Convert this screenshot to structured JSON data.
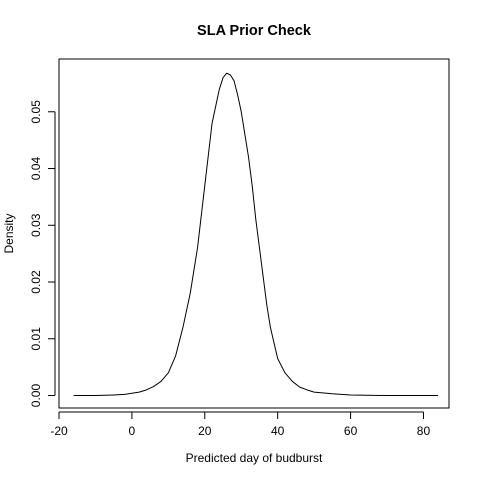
{
  "chart_data": {
    "type": "line",
    "title": "SLA Prior Check",
    "xlabel": "Predicted day of budburst",
    "ylabel": "Density",
    "xlim": [
      -20,
      87
    ],
    "ylim": [
      -0.0022,
      0.0593
    ],
    "x_ticks": [
      -20,
      0,
      20,
      40,
      60,
      80
    ],
    "y_ticks": [
      0.0,
      0.01,
      0.02,
      0.03,
      0.04,
      0.05
    ],
    "x_tick_labels": [
      "-20",
      "0",
      "20",
      "40",
      "60",
      "80"
    ],
    "y_tick_labels": [
      "0.00",
      "0.01",
      "0.02",
      "0.03",
      "0.04",
      "0.05"
    ],
    "grid": false,
    "legend": "none",
    "line_color": "#000000",
    "series": [
      {
        "x": [
          -16,
          -10,
          -5,
          -2,
          0,
          2,
          4,
          6,
          8,
          10,
          12,
          14,
          16,
          18,
          20,
          22,
          23,
          24,
          25,
          26,
          27,
          28,
          29,
          30,
          31,
          32,
          33,
          34,
          35,
          36,
          37,
          38,
          40,
          42,
          44,
          46,
          48,
          50,
          55,
          60,
          70,
          84
        ],
        "y": [
          0.0,
          0.0,
          0.0001,
          0.0002,
          0.0004,
          0.0006,
          0.001,
          0.0016,
          0.0025,
          0.004,
          0.007,
          0.012,
          0.018,
          0.026,
          0.037,
          0.048,
          0.051,
          0.054,
          0.056,
          0.0568,
          0.0565,
          0.0555,
          0.053,
          0.05,
          0.046,
          0.042,
          0.037,
          0.031,
          0.026,
          0.021,
          0.016,
          0.012,
          0.0065,
          0.004,
          0.0025,
          0.0015,
          0.001,
          0.0006,
          0.0003,
          0.0001,
          0.0,
          0.0
        ]
      }
    ]
  }
}
